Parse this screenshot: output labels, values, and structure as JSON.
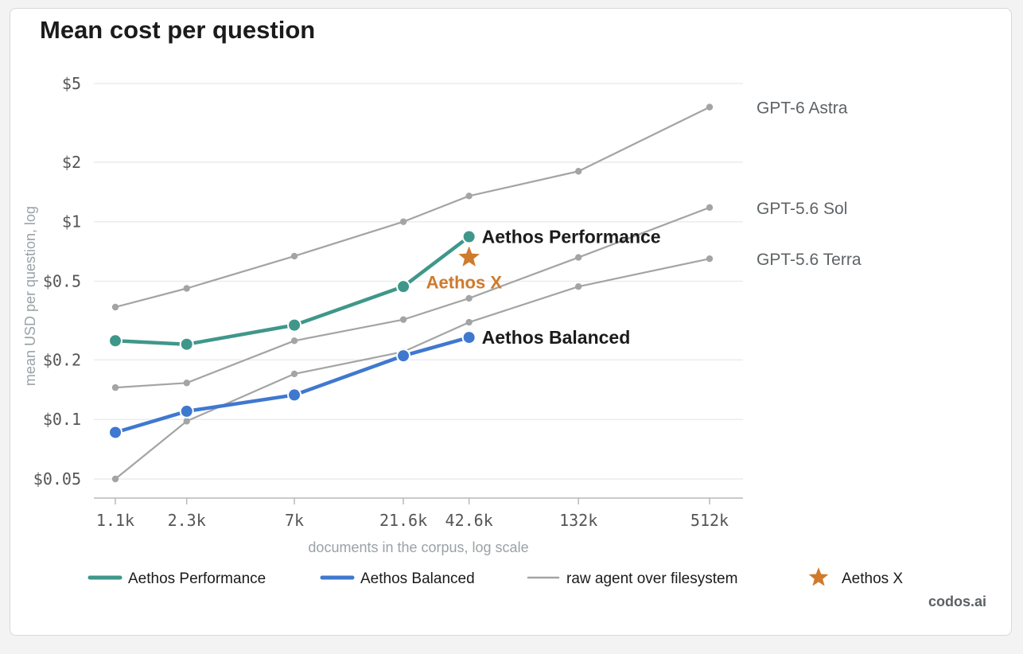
{
  "brand": "codos.ai",
  "colors": {
    "performance": "#3f978a",
    "balanced": "#3f78cf",
    "raw": "#a3a5a5",
    "star": "#cf7a2c",
    "grid": "#ececec"
  },
  "chart_data": {
    "type": "line",
    "title": "Mean cost per question",
    "xlabel": "documents in the corpus, log scale",
    "ylabel": "mean USD per question, log",
    "x_scale": "log",
    "y_scale": "log",
    "x_ticks": [
      {
        "value": 1100,
        "label": "1.1k"
      },
      {
        "value": 2300,
        "label": "2.3k"
      },
      {
        "value": 7000,
        "label": "7k"
      },
      {
        "value": 21600,
        "label": "21.6k"
      },
      {
        "value": 42600,
        "label": "42.6k"
      },
      {
        "value": 132000,
        "label": "132k"
      },
      {
        "value": 512000,
        "label": "512k"
      }
    ],
    "y_ticks": [
      {
        "value": 0.05,
        "label": "$0.05"
      },
      {
        "value": 0.1,
        "label": "$0.1"
      },
      {
        "value": 0.2,
        "label": "$0.2"
      },
      {
        "value": 0.5,
        "label": "$0.5"
      },
      {
        "value": 1,
        "label": "$1"
      },
      {
        "value": 2,
        "label": "$2"
      },
      {
        "value": 5,
        "label": "$5"
      }
    ],
    "grid": true,
    "series": [
      {
        "name": "GPT-6 Astra",
        "kind": "raw",
        "x": [
          1100,
          2300,
          7000,
          21600,
          42600,
          132000,
          512000
        ],
        "y": [
          0.37,
          0.46,
          0.67,
          1.0,
          1.35,
          1.8,
          3.8
        ]
      },
      {
        "name": "GPT-5.6 Sol",
        "kind": "raw",
        "x": [
          1100,
          2300,
          7000,
          21600,
          42600,
          132000,
          512000
        ],
        "y": [
          0.145,
          0.153,
          0.25,
          0.32,
          0.41,
          0.66,
          1.18
        ]
      },
      {
        "name": "GPT-5.6 Terra",
        "kind": "raw",
        "x": [
          1100,
          2300,
          7000,
          21600,
          42600,
          132000,
          512000
        ],
        "y": [
          0.05,
          0.098,
          0.17,
          0.22,
          0.31,
          0.47,
          0.65
        ]
      },
      {
        "name": "Aethos Performance",
        "kind": "performance",
        "x": [
          1100,
          2300,
          7000,
          21600,
          42600
        ],
        "y": [
          0.25,
          0.24,
          0.3,
          0.47,
          0.84
        ]
      },
      {
        "name": "Aethos Balanced",
        "kind": "balanced",
        "x": [
          1100,
          2300,
          7000,
          21600,
          42600
        ],
        "y": [
          0.086,
          0.11,
          0.133,
          0.21,
          0.26
        ]
      }
    ],
    "points": [
      {
        "name": "Aethos X",
        "kind": "star",
        "x": 42600,
        "y": 0.66
      }
    ],
    "legend": {
      "placement": "bottom",
      "items": [
        {
          "label": "Aethos Performance",
          "kind": "performance"
        },
        {
          "label": "Aethos Balanced",
          "kind": "balanced"
        },
        {
          "label": "raw agent over filesystem",
          "kind": "raw"
        },
        {
          "label": "Aethos X",
          "kind": "star"
        }
      ]
    }
  }
}
